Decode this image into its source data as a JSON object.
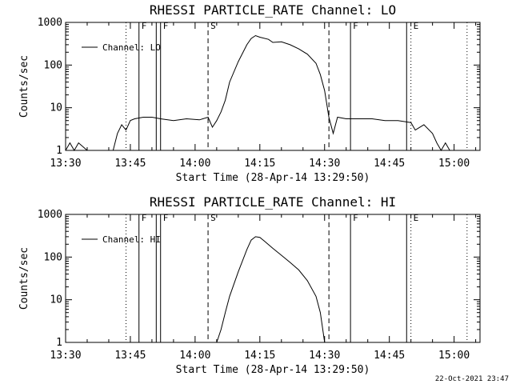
{
  "footer": {
    "timestamp": "22-Oct-2021 23:47"
  },
  "chart_data": [
    {
      "type": "line",
      "title": "RHESSI PARTICLE_RATE Channel: LO",
      "xlabel": "Start Time (28-Apr-14 13:29:50)",
      "ylabel": "Counts/sec",
      "yscale": "log",
      "xlim": [
        "13:30",
        "15:06"
      ],
      "ylim": [
        1,
        1000
      ],
      "x_ticks": [
        "13:30",
        "13:45",
        "14:00",
        "14:15",
        "14:30",
        "14:45",
        "15:00"
      ],
      "y_ticks": [
        "1",
        "10",
        "100",
        "1000"
      ],
      "legend": {
        "position": "top-left",
        "entries": [
          "Channel: LO"
        ]
      },
      "series": [
        {
          "name": "Channel: LO",
          "x": [
            "13:30",
            "13:31",
            "13:32",
            "13:33",
            "13:35",
            "13:38",
            "13:41",
            "13:42",
            "13:43",
            "13:44",
            "13:45",
            "13:46",
            "13:48",
            "13:50",
            "13:52",
            "13:55",
            "13:58",
            "14:01",
            "14:03",
            "14:04",
            "14:05",
            "14:06",
            "14:07",
            "14:08",
            "14:10",
            "14:12",
            "14:13",
            "14:14",
            "14:15",
            "14:17",
            "14:18",
            "14:20",
            "14:22",
            "14:24",
            "14:26",
            "14:28",
            "14:29",
            "14:30",
            "14:31",
            "14:32",
            "14:33",
            "14:35",
            "14:38",
            "14:41",
            "14:44",
            "14:47",
            "14:50",
            "14:51",
            "14:53",
            "14:55",
            "14:56",
            "14:57",
            "14:58",
            "14:59"
          ],
          "y": [
            1,
            1.5,
            1,
            1.5,
            1,
            1,
            1,
            2.5,
            4,
            3,
            5,
            5.5,
            6,
            6,
            5.5,
            5,
            5.5,
            5.2,
            6,
            3.5,
            5,
            8,
            15,
            40,
            120,
            300,
            420,
            490,
            450,
            400,
            340,
            350,
            300,
            240,
            180,
            110,
            60,
            25,
            6,
            2.5,
            6,
            5.5,
            5.5,
            5.5,
            5,
            5,
            4.5,
            3,
            4,
            2.5,
            1.5,
            1,
            1.5,
            1
          ]
        }
      ],
      "markers": [
        {
          "time": "13:44",
          "style": "dotted",
          "label": ""
        },
        {
          "time": "13:47",
          "style": "solid",
          "label": "F"
        },
        {
          "time": "13:51",
          "style": "solid",
          "label": ""
        },
        {
          "time": "13:52",
          "style": "solid",
          "label": "F"
        },
        {
          "time": "14:03",
          "style": "dashed",
          "label": "S"
        },
        {
          "time": "14:31",
          "style": "dashed",
          "label": ""
        },
        {
          "time": "14:36",
          "style": "solid",
          "label": "F"
        },
        {
          "time": "14:49",
          "style": "solid",
          "label": ""
        },
        {
          "time": "14:50",
          "style": "dotted",
          "label": "E"
        },
        {
          "time": "15:03",
          "style": "dotted",
          "label": ""
        }
      ]
    },
    {
      "type": "line",
      "title": "RHESSI PARTICLE_RATE Channel: HI",
      "xlabel": "Start Time (28-Apr-14 13:29:50)",
      "ylabel": "Counts/sec",
      "yscale": "log",
      "xlim": [
        "13:30",
        "15:06"
      ],
      "ylim": [
        1,
        1000
      ],
      "x_ticks": [
        "13:30",
        "13:45",
        "14:00",
        "14:15",
        "14:30",
        "14:45",
        "15:00"
      ],
      "y_ticks": [
        "1",
        "10",
        "100",
        "1000"
      ],
      "legend": {
        "position": "top-left",
        "entries": [
          "Channel: HI"
        ]
      },
      "series": [
        {
          "name": "Channel: HI",
          "x": [
            "14:05",
            "14:06",
            "14:07",
            "14:08",
            "14:10",
            "14:12",
            "14:13",
            "14:14",
            "14:15",
            "14:16",
            "14:18",
            "14:20",
            "14:22",
            "14:24",
            "14:26",
            "14:28",
            "14:29",
            "14:30"
          ],
          "y": [
            1,
            2,
            5,
            12,
            45,
            150,
            250,
            300,
            290,
            240,
            160,
            110,
            75,
            50,
            28,
            12,
            5,
            1
          ]
        }
      ],
      "markers": [
        {
          "time": "13:44",
          "style": "dotted",
          "label": ""
        },
        {
          "time": "13:47",
          "style": "solid",
          "label": "F"
        },
        {
          "time": "13:51",
          "style": "solid",
          "label": ""
        },
        {
          "time": "13:52",
          "style": "solid",
          "label": "F"
        },
        {
          "time": "14:03",
          "style": "dashed",
          "label": "S"
        },
        {
          "time": "14:31",
          "style": "dashed",
          "label": ""
        },
        {
          "time": "14:36",
          "style": "solid",
          "label": "F"
        },
        {
          "time": "14:49",
          "style": "solid",
          "label": ""
        },
        {
          "time": "14:50",
          "style": "dotted",
          "label": "E"
        },
        {
          "time": "15:03",
          "style": "dotted",
          "label": ""
        }
      ]
    }
  ]
}
